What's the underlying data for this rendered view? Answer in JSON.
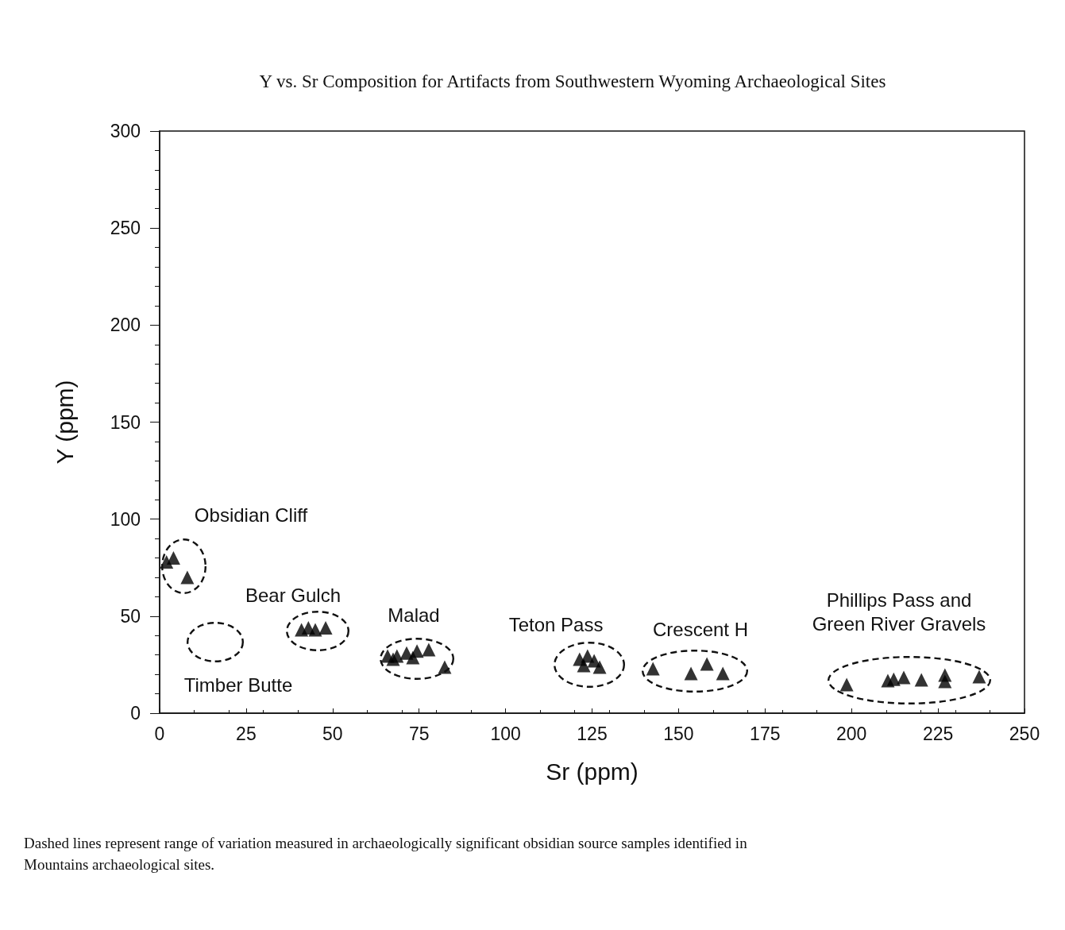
{
  "chart_data": {
    "type": "scatter",
    "title": "Y vs. Sr Composition for Artifacts from Southwestern Wyoming Archaeological Sites",
    "xlabel": "Sr (ppm)",
    "ylabel": "Y (ppm)",
    "xlim": [
      0,
      250
    ],
    "xticks": [
      0,
      25,
      50,
      75,
      100,
      125,
      150,
      175,
      200,
      225,
      250
    ],
    "ylim": [
      0,
      300
    ],
    "yticks": [
      0,
      50,
      100,
      150,
      200,
      250,
      300
    ],
    "grid": false,
    "series": [
      {
        "marker": "triangle",
        "color": "#000000",
        "x": [
          2,
          4,
          8,
          41,
          43,
          45,
          48,
          65.9,
          67.5,
          68.6,
          71.4,
          73.2,
          74.4,
          77.8,
          82.4,
          121.4,
          122.6,
          123.7,
          125.6,
          127.2,
          142.6,
          153.6,
          158.2,
          162.8,
          198.6,
          210.5,
          212.2,
          215.1,
          220.2,
          227,
          227,
          236.9
        ],
        "values": [
          78,
          80,
          70,
          43,
          44,
          43,
          44,
          29.5,
          27.8,
          29.5,
          31,
          28.7,
          32,
          32.7,
          23.7,
          27.8,
          24.6,
          29.5,
          27,
          23.7,
          22.9,
          20.5,
          25.4,
          20.5,
          14.7,
          16.8,
          17.5,
          18.4,
          17.2,
          19.6,
          16.4,
          18.8
        ]
      }
    ],
    "annotations": [
      "Obsidian Cliff",
      "Timber Butte",
      "Bear Gulch",
      "Malad",
      "Teton Pass",
      "Crescent H",
      "Phillips Pass and\nGreen River Gravels",
      "Dashed lines represent range of variation measured in archaeologically significant obsidian source samples identified in\nMountains archaeological sites."
    ]
  }
}
